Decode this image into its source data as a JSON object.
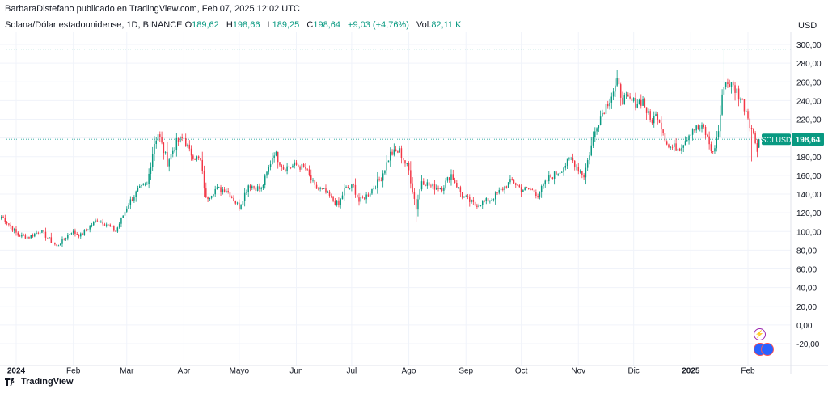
{
  "header": {
    "publisher": "BarbaraDistefano publicado en TradingView.com, Feb 07, 2025 12:02 UTC"
  },
  "symbol": {
    "name": "Solana/Dólar estadounidense, 1D, BINANCE",
    "open_label": "O",
    "open": "189,62",
    "high_label": "H",
    "high": "198,66",
    "low_label": "L",
    "low": "189,25",
    "close_label": "C",
    "close": "198,64",
    "change": "+9,03 (+4,76%)",
    "volume_label": "Vol.",
    "volume": "82,11 K"
  },
  "currency": "USD",
  "price_tag": {
    "symbol": "SOLUSD",
    "price": "198,64"
  },
  "footer": {
    "brand": "TradingView"
  },
  "colors": {
    "up": "#089981",
    "down": "#f23645",
    "grid": "#f0f3fa",
    "axis_text": "#131722",
    "badge": "#089981"
  },
  "icons": {
    "event": "lightning-icon",
    "flags": "us-flag-icon"
  },
  "chart_data": {
    "type": "candlestick",
    "title": "Solana/Dólar estadounidense, 1D, BINANCE",
    "xlabel": "",
    "ylabel": "USD",
    "ylim": [
      -30,
      305
    ],
    "xlim": [
      "2023-12-25",
      "2025-02-20"
    ],
    "grid": true,
    "y_ticks": [
      "300,00",
      "280,00",
      "260,00",
      "240,00",
      "220,00",
      "200,00",
      "180,00",
      "160,00",
      "140,00",
      "120,00",
      "100,00",
      "80,00",
      "60,00",
      "40,00",
      "20,00",
      "0,00",
      "-20,00"
    ],
    "y_tick_values": [
      300,
      280,
      260,
      240,
      220,
      200,
      180,
      160,
      140,
      120,
      100,
      80,
      60,
      40,
      20,
      0,
      -20
    ],
    "x_ticks": [
      {
        "label": "2024",
        "date": "2024-01-01",
        "bold": true
      },
      {
        "label": "Feb",
        "date": "2024-02-01"
      },
      {
        "label": "Mar",
        "date": "2024-03-01"
      },
      {
        "label": "Abr",
        "date": "2024-04-01"
      },
      {
        "label": "Mayo",
        "date": "2024-05-01"
      },
      {
        "label": "Jun",
        "date": "2024-06-01"
      },
      {
        "label": "Jul",
        "date": "2024-07-01"
      },
      {
        "label": "Ago",
        "date": "2024-08-01"
      },
      {
        "label": "Sep",
        "date": "2024-09-01"
      },
      {
        "label": "Oct",
        "date": "2024-10-01"
      },
      {
        "label": "Nov",
        "date": "2024-11-01"
      },
      {
        "label": "Dic",
        "date": "2024-12-01"
      },
      {
        "label": "2025",
        "date": "2025-01-01",
        "bold": true
      },
      {
        "label": "Feb",
        "date": "2025-02-01"
      }
    ],
    "horizontal_lines": [
      295,
      79
    ],
    "last_price_line": 198.64,
    "anchors": [
      {
        "d": "2023-12-24",
        "c": 116
      },
      {
        "d": "2023-12-27",
        "c": 110
      },
      {
        "d": "2024-01-02",
        "c": 96
      },
      {
        "d": "2024-01-08",
        "c": 94
      },
      {
        "d": "2024-01-14",
        "c": 101
      },
      {
        "d": "2024-01-23",
        "c": 84
      },
      {
        "d": "2024-01-31",
        "c": 100
      },
      {
        "d": "2024-02-05",
        "c": 96
      },
      {
        "d": "2024-02-14",
        "c": 113
      },
      {
        "d": "2024-02-19",
        "c": 108
      },
      {
        "d": "2024-02-24",
        "c": 100
      },
      {
        "d": "2024-03-02",
        "c": 130
      },
      {
        "d": "2024-03-07",
        "c": 144
      },
      {
        "d": "2024-03-12",
        "c": 150
      },
      {
        "d": "2024-03-16",
        "c": 195
      },
      {
        "d": "2024-03-18",
        "c": 205
      },
      {
        "d": "2024-03-23",
        "c": 174
      },
      {
        "d": "2024-03-28",
        "c": 195
      },
      {
        "d": "2024-04-01",
        "c": 200
      },
      {
        "d": "2024-04-04",
        "c": 185
      },
      {
        "d": "2024-04-10",
        "c": 175
      },
      {
        "d": "2024-04-13",
        "c": 135
      },
      {
        "d": "2024-04-18",
        "c": 145
      },
      {
        "d": "2024-04-24",
        "c": 145
      },
      {
        "d": "2024-05-01",
        "c": 126
      },
      {
        "d": "2024-05-06",
        "c": 150
      },
      {
        "d": "2024-05-13",
        "c": 145
      },
      {
        "d": "2024-05-20",
        "c": 185
      },
      {
        "d": "2024-05-25",
        "c": 168
      },
      {
        "d": "2024-06-01",
        "c": 171
      },
      {
        "d": "2024-06-06",
        "c": 167
      },
      {
        "d": "2024-06-11",
        "c": 147
      },
      {
        "d": "2024-06-16",
        "c": 143
      },
      {
        "d": "2024-06-24",
        "c": 128
      },
      {
        "d": "2024-06-27",
        "c": 145
      },
      {
        "d": "2024-07-02",
        "c": 148
      },
      {
        "d": "2024-07-05",
        "c": 132
      },
      {
        "d": "2024-07-10",
        "c": 140
      },
      {
        "d": "2024-07-17",
        "c": 158
      },
      {
        "d": "2024-07-22",
        "c": 183
      },
      {
        "d": "2024-07-27",
        "c": 186
      },
      {
        "d": "2024-08-01",
        "c": 165
      },
      {
        "d": "2024-08-05",
        "c": 125
      },
      {
        "d": "2024-08-08",
        "c": 155
      },
      {
        "d": "2024-08-13",
        "c": 148
      },
      {
        "d": "2024-08-19",
        "c": 147
      },
      {
        "d": "2024-08-24",
        "c": 161
      },
      {
        "d": "2024-08-30",
        "c": 138
      },
      {
        "d": "2024-09-06",
        "c": 128
      },
      {
        "d": "2024-09-15",
        "c": 135
      },
      {
        "d": "2024-09-26",
        "c": 155
      },
      {
        "d": "2024-10-01",
        "c": 145
      },
      {
        "d": "2024-10-06",
        "c": 145
      },
      {
        "d": "2024-10-10",
        "c": 140
      },
      {
        "d": "2024-10-16",
        "c": 157
      },
      {
        "d": "2024-10-22",
        "c": 165
      },
      {
        "d": "2024-10-28",
        "c": 178
      },
      {
        "d": "2024-11-01",
        "c": 167
      },
      {
        "d": "2024-11-04",
        "c": 160
      },
      {
        "d": "2024-11-11",
        "c": 215
      },
      {
        "d": "2024-11-16",
        "c": 235
      },
      {
        "d": "2024-11-22",
        "c": 258
      },
      {
        "d": "2024-11-25",
        "c": 242
      },
      {
        "d": "2024-12-01",
        "c": 238
      },
      {
        "d": "2024-12-06",
        "c": 240
      },
      {
        "d": "2024-12-10",
        "c": 218
      },
      {
        "d": "2024-12-14",
        "c": 225
      },
      {
        "d": "2024-12-20",
        "c": 190
      },
      {
        "d": "2024-12-26",
        "c": 190
      },
      {
        "d": "2025-01-02",
        "c": 210
      },
      {
        "d": "2025-01-08",
        "c": 210
      },
      {
        "d": "2025-01-13",
        "c": 183
      },
      {
        "d": "2025-01-16",
        "c": 208
      },
      {
        "d": "2025-01-19",
        "c": 260
      },
      {
        "d": "2025-01-22",
        "c": 258
      },
      {
        "d": "2025-01-26",
        "c": 250
      },
      {
        "d": "2025-01-31",
        "c": 230
      },
      {
        "d": "2025-02-03",
        "c": 210
      },
      {
        "d": "2025-02-06",
        "c": 189.62
      },
      {
        "d": "2025-02-07",
        "c": 198.64
      }
    ],
    "notable_wicks": [
      {
        "d": "2025-01-19",
        "high": 295
      },
      {
        "d": "2024-08-05",
        "low": 110
      },
      {
        "d": "2025-02-03",
        "low": 175
      },
      {
        "d": "2024-03-18",
        "high": 210
      }
    ],
    "last_candle": {
      "d": "2025-02-07",
      "o": 189.62,
      "h": 198.66,
      "l": 189.25,
      "c": 198.64
    }
  }
}
